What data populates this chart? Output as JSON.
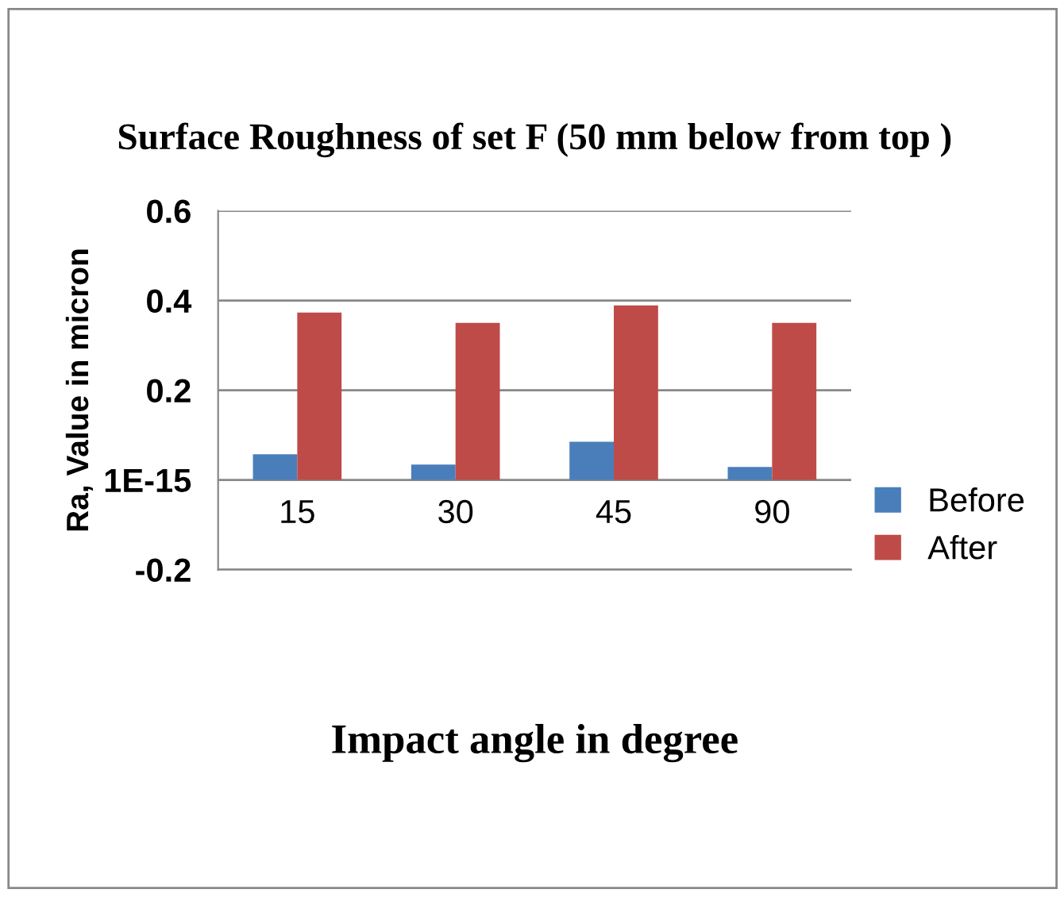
{
  "chart_data": {
    "type": "bar",
    "title": "Surface Roughness of set F (50 mm below from top )",
    "xlabel": "Impact angle in degree",
    "ylabel": "Ra, Value in micron",
    "categories": [
      "15",
      "30",
      "45",
      "90"
    ],
    "series": [
      {
        "name": "Before",
        "color": "#4a7ebb",
        "values": [
          0.057,
          0.034,
          0.085,
          0.029
        ]
      },
      {
        "name": "After",
        "color": "#be4b48",
        "values": [
          0.373,
          0.35,
          0.389,
          0.35
        ]
      }
    ],
    "ylim": [
      -0.2,
      0.6
    ],
    "yticks": [
      -0.2,
      {
        "value": 0,
        "label": "1E-15"
      },
      0.2,
      0.4,
      0.6
    ],
    "grid": "y",
    "legend": "right"
  }
}
